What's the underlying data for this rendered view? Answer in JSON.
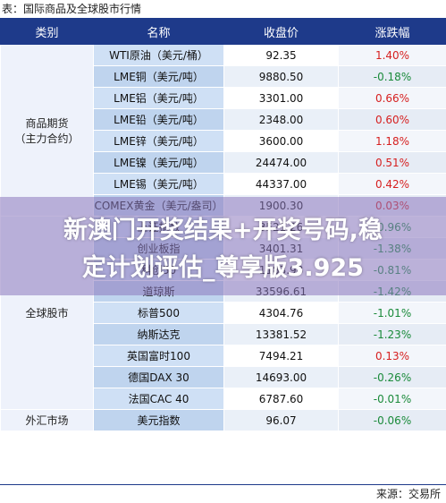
{
  "caption": "表：国际商品及全球股市行情",
  "source": "来源：交易所",
  "headers": [
    "类别",
    "名称",
    "收盘价",
    "涨跌幅"
  ],
  "groups": [
    {
      "label": "商品期货\n（主力合约）",
      "rows": [
        {
          "name": "WTI原油（美元/桶）",
          "close": "92.35",
          "change": "1.40%",
          "dir": "up"
        },
        {
          "name": "LME铜（美元/吨）",
          "close": "9880.50",
          "change": "-0.18%",
          "dir": "down"
        },
        {
          "name": "LME铝（美元/吨）",
          "close": "3301.00",
          "change": "0.66%",
          "dir": "up"
        },
        {
          "name": "LME铅（美元/吨）",
          "close": "2348.00",
          "change": "0.60%",
          "dir": "up"
        },
        {
          "name": "LME锌（美元/吨）",
          "close": "3600.00",
          "change": "1.18%",
          "dir": "up"
        },
        {
          "name": "LME镍（美元/吨）",
          "close": "24474.00",
          "change": "0.51%",
          "dir": "up"
        },
        {
          "name": "LME锡（美元/吨）",
          "close": "44337.00",
          "change": "0.42%",
          "dir": "up"
        },
        {
          "name": "COMEX黄金（美元/盎司）",
          "close": "1900.30",
          "change": "0.03%",
          "dir": "up"
        }
      ]
    },
    {
      "label": "全球股市",
      "rows": [
        {
          "name": "上证指数",
          "close": "3521.26",
          "change": "-0.96%",
          "dir": "down"
        },
        {
          "name": "创业板指",
          "close": "3401.31",
          "change": "-1.38%",
          "dir": "down"
        },
        {
          "name": "科创50",
          "close": "1183.98",
          "change": "-0.81%",
          "dir": "down"
        },
        {
          "name": "道琼斯",
          "close": "33596.61",
          "change": "-1.42%",
          "dir": "down"
        },
        {
          "name": "标普500",
          "close": "4304.76",
          "change": "-1.01%",
          "dir": "down"
        },
        {
          "name": "纳斯达克",
          "close": "13381.52",
          "change": "-1.23%",
          "dir": "down"
        },
        {
          "name": "英国富时100",
          "close": "7494.21",
          "change": "0.13%",
          "dir": "up"
        },
        {
          "name": "德国DAX 30",
          "close": "14693.00",
          "change": "-0.26%",
          "dir": "down"
        },
        {
          "name": "法国CAC 40",
          "close": "6787.60",
          "change": "-0.01%",
          "dir": "down"
        }
      ]
    },
    {
      "label": "外汇市场",
      "rows": [
        {
          "name": "美元指数",
          "close": "96.07",
          "change": "-0.06%",
          "dir": "down"
        }
      ]
    }
  ],
  "overlay": {
    "line1": "新澳门开奖结果+开奖号码,稳",
    "line2": "定计划评估_尊享版3.925"
  },
  "colors": {
    "header_bg": "#1e3a8a",
    "up": "#d61f1f",
    "down": "#1a8a3a"
  }
}
